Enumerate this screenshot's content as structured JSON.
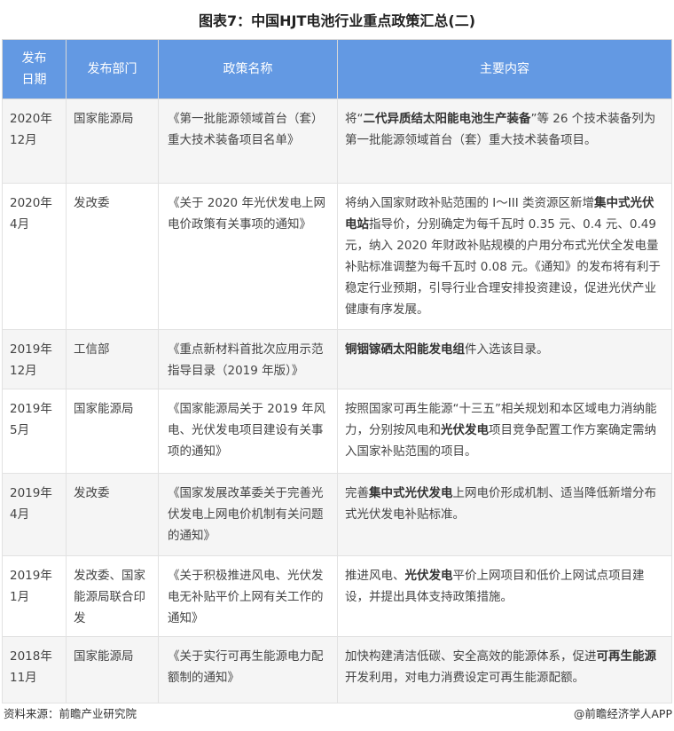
{
  "title": "图表7：中国HJT电池行业重点政策汇总(二)",
  "headers": [
    "发布日期",
    "发布部门",
    "政策名称",
    "主要内容"
  ],
  "rows": [
    {
      "date": "2020年12月",
      "dept": "国家能源局",
      "name": "《第一批能源领域首台（套）重大技术装备项目名单》",
      "content": [
        {
          "t": "将“"
        },
        {
          "t": "二代异质结太阳能电池生产装备",
          "b": true
        },
        {
          "t": "”等 26 个技术装备列为第一批能源领域首台（套）重大技术装备项目。"
        }
      ]
    },
    {
      "date": "2020年4月",
      "dept": "发改委",
      "name": "《关于 2020 年光伏发电上网电价政策有关事项的通知》",
      "content": [
        {
          "t": "将纳入国家财政补贴范围的 I～III 类资源区新增"
        },
        {
          "t": "集中式光伏电站",
          "b": true
        },
        {
          "t": "指导价，分别确定为每千瓦时 0.35 元、0.4 元、0.49 元，纳入 2020 年财政补贴规模的户用分布式光伏全发电量补贴标准调整为每千瓦时 0.08 元。《通知》的发布将有利于稳定行业预期，引导行业合理安排投资建设，促进光伏产业健康有序发展。"
        }
      ]
    },
    {
      "date": "2019年12月",
      "dept": "工信部",
      "name": "《重点新材料首批次应用示范指导目录（2019 年版）》",
      "content": [
        {
          "t": "铜铟镓硒太阳能发电组",
          "b": true
        },
        {
          "t": "件入选该目录。"
        }
      ]
    },
    {
      "date": "2019年5月",
      "dept": "国家能源局",
      "name": "《国家能源局关于 2019 年风电、光伏发电项目建设有关事项的通知》",
      "content": [
        {
          "t": "按照国家可再生能源“十三五”相关规划和本区域电力消纳能力，分别按风电和"
        },
        {
          "t": "光伏发电",
          "b": true
        },
        {
          "t": "项目竞争配置工作方案确定需纳入国家补贴范围的项目。"
        }
      ]
    },
    {
      "date": "2019年4月",
      "dept": "发改委",
      "name": "《国家发展改革委关于完善光伏发电上网电价机制有关问题的通知》",
      "content": [
        {
          "t": "完善"
        },
        {
          "t": "集中式光伏发电",
          "b": true
        },
        {
          "t": "上网电价形成机制、适当降低新增分布式光伏发电补贴标准。"
        }
      ]
    },
    {
      "date": "2019年1月",
      "dept": "发改委、国家能源局联合印发",
      "name": "《关于积极推进风电、光伏发电无补贴平价上网有关工作的通知》",
      "content": [
        {
          "t": "推进风电、"
        },
        {
          "t": "光伏发电",
          "b": true
        },
        {
          "t": "平价上网项目和低价上网试点项目建设，并提出具体支持政策措施。"
        }
      ]
    },
    {
      "date": "2018年11月",
      "dept": "国家能源局",
      "name": "《关于实行可再生能源电力配额制的通知》",
      "content": [
        {
          "t": "加快构建清洁低碳、安全高效的能源体系，促进"
        },
        {
          "t": "可再生能源",
          "b": true
        },
        {
          "t": "开发利用，对电力消费设定可再生能源配额。"
        }
      ]
    }
  ],
  "footer": {
    "source": "资料来源：前瞻产业研究院",
    "app": "@前瞻经济学人APP"
  },
  "colors": {
    "header_bg": "#6399e3"
  }
}
